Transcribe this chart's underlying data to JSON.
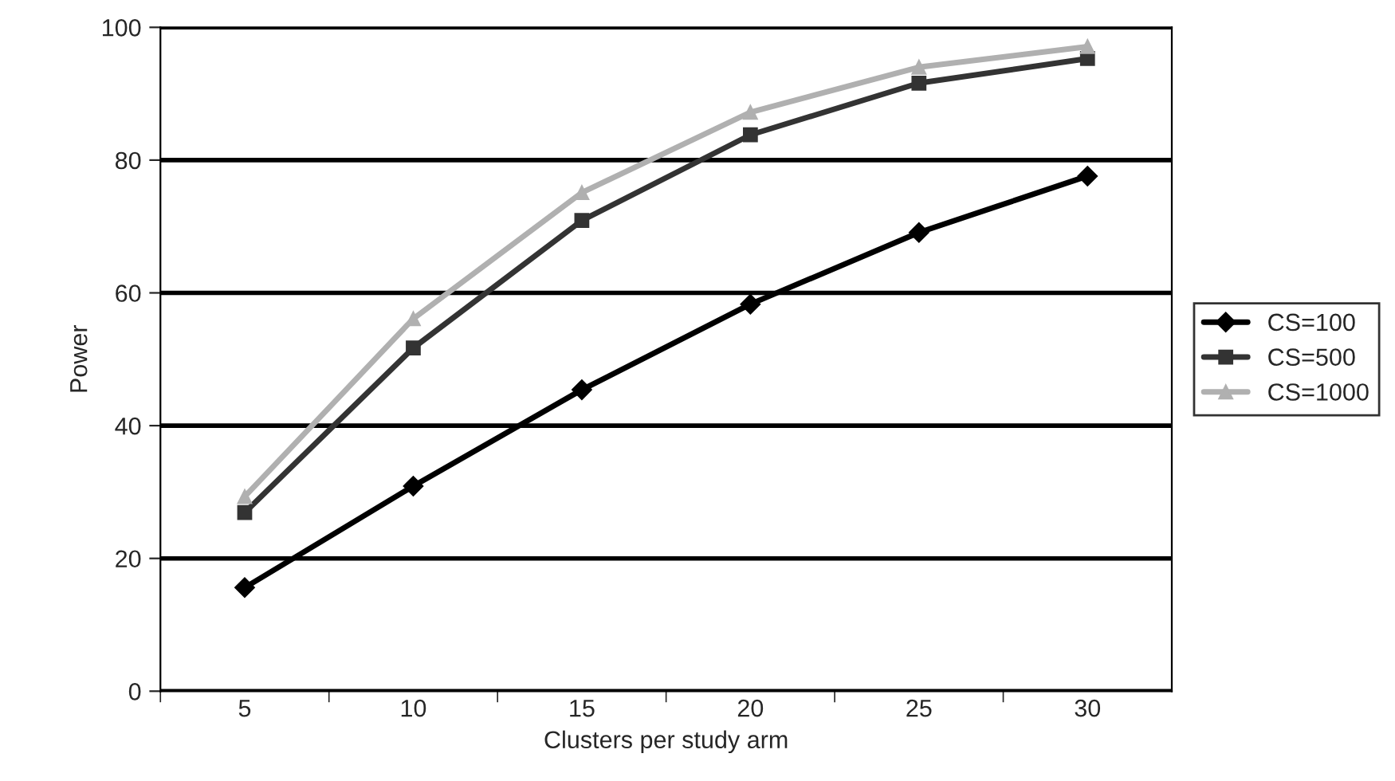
{
  "chart_data": {
    "type": "line",
    "xlabel": "Clusters per study arm",
    "ylabel": "Power",
    "categories": [
      "5",
      "10",
      "15",
      "20",
      "25",
      "30"
    ],
    "series": [
      {
        "name": "CS=100",
        "color": "#000000",
        "marker": "diamond",
        "values": [
          15.6,
          30.9,
          45.4,
          58.3,
          69.1,
          77.6
        ]
      },
      {
        "name": "CS=500",
        "color": "#333333",
        "marker": "square",
        "values": [
          26.9,
          51.7,
          70.9,
          83.8,
          91.6,
          95.3
        ]
      },
      {
        "name": "CS=1000",
        "color": "#b0b0b0",
        "marker": "triangle",
        "values": [
          29.3,
          56.1,
          75.1,
          87.2,
          94.0,
          97.1
        ]
      }
    ],
    "ylim": [
      0,
      100
    ],
    "yticks": [
      0,
      20,
      40,
      60,
      80,
      100
    ],
    "grid": "y",
    "legend": "right"
  }
}
